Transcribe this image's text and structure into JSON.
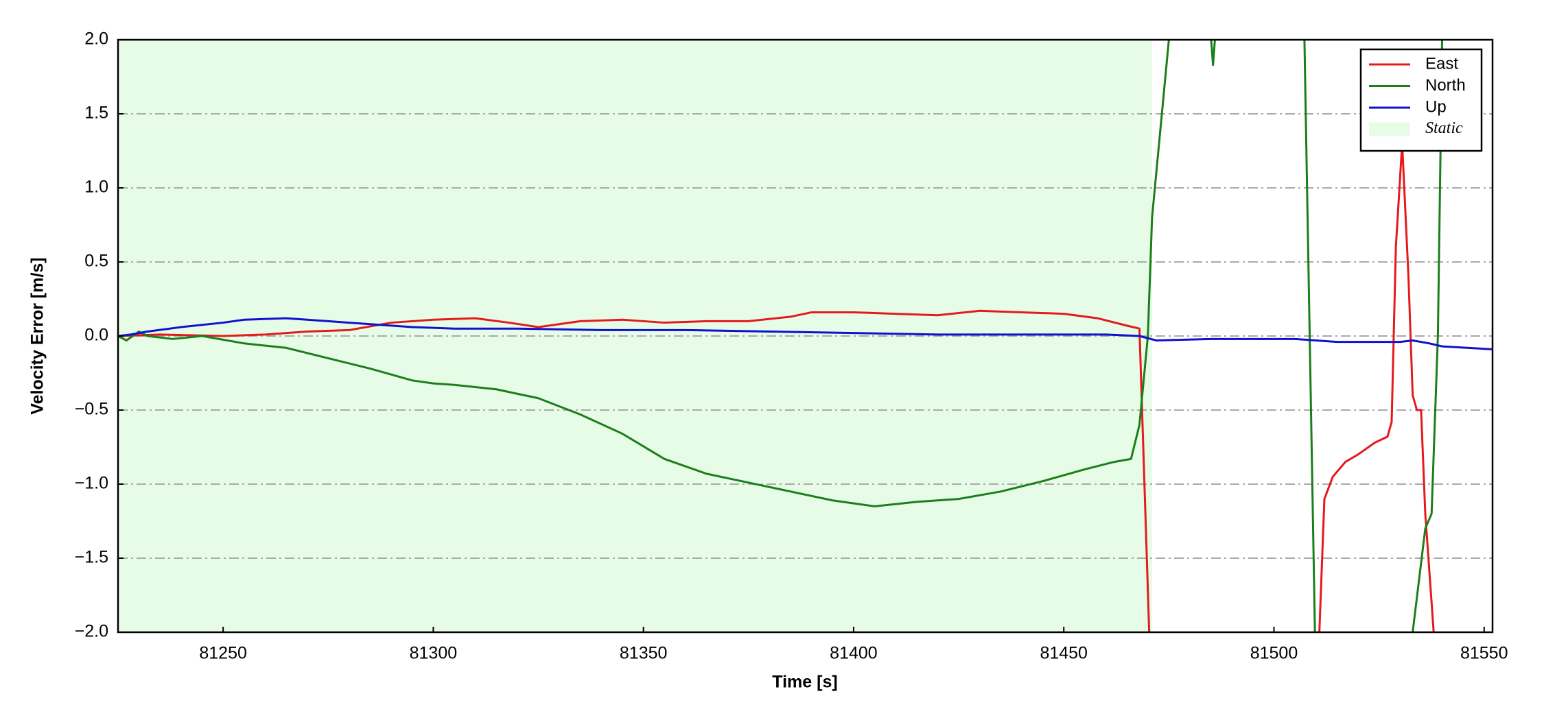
{
  "chart_data": {
    "type": "line",
    "xlabel": "Time [s]",
    "ylabel": "Velocity Error [m/s]",
    "xlim": [
      81225,
      81552
    ],
    "ylim": [
      -2.0,
      2.0
    ],
    "xticks": [
      81250,
      81300,
      81350,
      81400,
      81450,
      81500,
      81550
    ],
    "yticks": [
      {
        "value": -2.0,
        "label": "−2.0"
      },
      {
        "value": -1.5,
        "label": "−1.5"
      },
      {
        "value": -1.0,
        "label": "−1.0"
      },
      {
        "value": -0.5,
        "label": "−0.5"
      },
      {
        "value": 0.0,
        "label": "0.0"
      },
      {
        "value": 0.5,
        "label": "0.5"
      },
      {
        "value": 1.0,
        "label": "1.0"
      },
      {
        "value": 1.5,
        "label": "1.5"
      },
      {
        "value": 2.0,
        "label": "2.0"
      }
    ],
    "grid": true,
    "legend": "upper right",
    "static": {
      "name": "Static",
      "color": "#e6fce6",
      "x": [
        81225,
        81471
      ]
    },
    "series": [
      {
        "name": "East",
        "color": "#e41a1c",
        "x": [
          81225,
          81235,
          81250,
          81260,
          81270,
          81280,
          81290,
          81300,
          81310,
          81318,
          81325,
          81335,
          81345,
          81355,
          81365,
          81375,
          81385,
          81390,
          81400,
          81410,
          81420,
          81430,
          81440,
          81450,
          81458,
          81465,
          81468,
          81471,
          81510,
          81512,
          81514,
          81517,
          81520,
          81524,
          81527,
          81528,
          81529,
          81530.5,
          81532,
          81533,
          81534,
          81535,
          81536,
          81538,
          81540
        ],
        "values": [
          0,
          0.01,
          0,
          0.01,
          0.03,
          0.04,
          0.09,
          0.11,
          0.12,
          0.09,
          0.06,
          0.1,
          0.11,
          0.09,
          0.1,
          0.1,
          0.13,
          0.16,
          0.16,
          0.15,
          0.14,
          0.17,
          0.16,
          0.15,
          0.12,
          0.07,
          0.05,
          -2.6,
          -2.6,
          -1.1,
          -0.95,
          -0.85,
          -0.8,
          -0.72,
          -0.68,
          -0.58,
          0.6,
          1.3,
          0.4,
          -0.4,
          -0.5,
          -0.5,
          -1.2,
          -2.0,
          -2.6
        ]
      },
      {
        "name": "North",
        "color": "#1a7f1a",
        "x": [
          81225,
          81227,
          81230,
          81232,
          81238,
          81245,
          81255,
          81265,
          81275,
          81285,
          81295,
          81300,
          81305,
          81315,
          81325,
          81335,
          81345,
          81355,
          81365,
          81375,
          81385,
          81395,
          81405,
          81415,
          81425,
          81435,
          81445,
          81455,
          81462,
          81466,
          81468,
          81470,
          81471,
          81474,
          81476,
          81484,
          81485.5,
          81487,
          81507,
          81510,
          81530,
          81533,
          81536,
          81537.5,
          81538,
          81539,
          81540,
          81541
        ],
        "values": [
          0,
          -0.03,
          0.03,
          0,
          -0.02,
          0,
          -0.05,
          -0.08,
          -0.15,
          -0.22,
          -0.3,
          -0.32,
          -0.33,
          -0.36,
          -0.42,
          -0.53,
          -0.66,
          -0.83,
          -0.93,
          -0.99,
          -1.05,
          -1.11,
          -1.15,
          -1.12,
          -1.1,
          -1.05,
          -0.98,
          -0.9,
          -0.85,
          -0.83,
          -0.6,
          0.0,
          0.8,
          1.7,
          2.3,
          2.4,
          1.83,
          2.4,
          2.4,
          -2.4,
          -2.4,
          -2.0,
          -1.3,
          -1.2,
          -0.8,
          0.0,
          2.0,
          2.4
        ]
      },
      {
        "name": "Up",
        "color": "#1010d0",
        "x": [
          81225,
          81228,
          81232,
          81240,
          81250,
          81255,
          81265,
          81275,
          81285,
          81295,
          81305,
          81320,
          81340,
          81360,
          81380,
          81400,
          81420,
          81440,
          81460,
          81468,
          81472,
          81485,
          81495,
          81505,
          81515,
          81530,
          81533,
          81537,
          81540,
          81552
        ],
        "values": [
          0.0,
          0.01,
          0.03,
          0.06,
          0.09,
          0.11,
          0.12,
          0.1,
          0.08,
          0.06,
          0.05,
          0.05,
          0.04,
          0.04,
          0.03,
          0.02,
          0.01,
          0.01,
          0.01,
          0,
          -0.03,
          -0.02,
          -0.02,
          -0.02,
          -0.04,
          -0.04,
          -0.03,
          -0.05,
          -0.07,
          -0.09
        ]
      }
    ]
  }
}
